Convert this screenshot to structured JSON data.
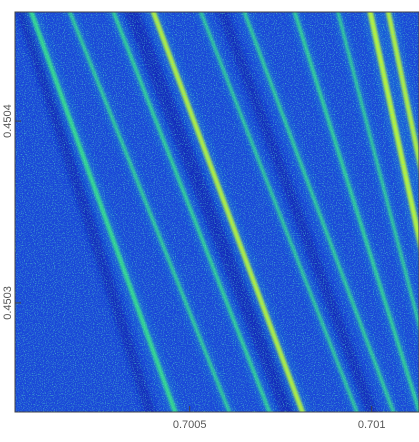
{
  "chart_data": {
    "type": "heatmap",
    "title": "",
    "xlabel": "",
    "ylabel": "",
    "x_ticks": [
      {
        "value": 0.7005,
        "label": "0.7005"
      },
      {
        "value": 0.701,
        "label": "0.701"
      }
    ],
    "y_ticks": [
      {
        "value": 0.4503,
        "label": "0.4503"
      },
      {
        "value": 0.4504,
        "label": "0.4504"
      }
    ],
    "xlim": [
      0.70002,
      0.70113
    ],
    "ylim": [
      0.45024,
      0.45046
    ],
    "grid": false,
    "colors": {
      "background": "#1a47d8",
      "dense": "#0a1fb4",
      "medium": "#1f8fd8",
      "bright": "#33e08a",
      "peak": "#b8f23a",
      "axis": "#444444"
    },
    "streaks": [
      {
        "x_top": 0.700055,
        "x_bottom": 0.70047,
        "intensity": 0.8
      },
      {
        "x_top": 0.70016,
        "x_bottom": 0.70062,
        "intensity": 0.55
      },
      {
        "x_top": 0.70028,
        "x_bottom": 0.70073,
        "intensity": 0.6
      },
      {
        "x_top": 0.70039,
        "x_bottom": 0.70082,
        "intensity": 0.9
      },
      {
        "x_top": 0.70052,
        "x_bottom": 0.70097,
        "intensity": 0.5
      },
      {
        "x_top": 0.70064,
        "x_bottom": 0.70107,
        "intensity": 0.55
      },
      {
        "x_top": 0.70078,
        "x_bottom": 0.70114,
        "intensity": 0.6
      },
      {
        "x_top": 0.7009,
        "x_bottom": 0.7012,
        "intensity": 0.5
      },
      {
        "x_top": 0.70099,
        "x_bottom": 0.70124,
        "intensity": 1.0
      },
      {
        "x_top": 0.70104,
        "x_bottom": 0.70128,
        "intensity": 0.9
      }
    ],
    "dark_bands": [
      {
        "x_top": 0.70003,
        "x_bottom": 0.7004,
        "width": 3e-05
      },
      {
        "x_top": 0.70033,
        "x_bottom": 0.70078,
        "width": 4e-05
      },
      {
        "x_top": 0.70058,
        "x_bottom": 0.70101,
        "width": 3e-05
      }
    ]
  }
}
